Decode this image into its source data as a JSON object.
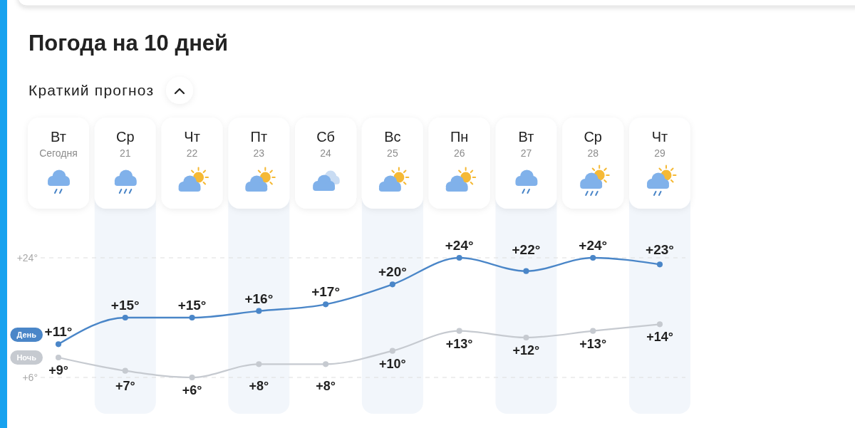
{
  "chart_data": {
    "type": "line",
    "title": "Погода на 10 дней",
    "subtitle": "Краткий прогноз",
    "categories": [
      "Вт Сегодня",
      "Ср 21",
      "Чт 22",
      "Пт 23",
      "Сб 24",
      "Вс 25",
      "Пн 26",
      "Вт 27",
      "Ср 28",
      "Чт 29"
    ],
    "series": [
      {
        "name": "День",
        "color": "#4a86c8",
        "values": [
          11,
          15,
          15,
          16,
          17,
          20,
          24,
          22,
          24,
          23
        ],
        "value_labels": [
          "+11°",
          "+15°",
          "+15°",
          "+16°",
          "+17°",
          "+20°",
          "+24°",
          "+22°",
          "+24°",
          "+23°"
        ]
      },
      {
        "name": "Ночь",
        "color": "#c6cad0",
        "values": [
          9,
          7,
          6,
          8,
          8,
          10,
          13,
          12,
          13,
          14
        ],
        "value_labels": [
          "+9°",
          "+7°",
          "+6°",
          "+8°",
          "+8°",
          "+10°",
          "+13°",
          "+12°",
          "+13°",
          "+14°"
        ]
      }
    ],
    "tick_labels": "x",
    "marker": "circle",
    "line_style": "solid",
    "ref_lines": [
      {
        "axis": "y",
        "value": 24,
        "label": "+24°",
        "color": "#dedede",
        "line_style": "dashed"
      },
      {
        "axis": "y",
        "value": 6,
        "label": "+6°",
        "color": "#dedede",
        "line_style": "dashed"
      }
    ],
    "bands": [
      {
        "axis": "x",
        "from": "Ср 21",
        "to": "Ср 21",
        "color": "#f2f6fb"
      },
      {
        "axis": "x",
        "from": "Пт 23",
        "to": "Пт 23",
        "color": "#f2f6fb"
      },
      {
        "axis": "x",
        "from": "Вс 25",
        "to": "Вс 25",
        "color": "#f2f6fb"
      },
      {
        "axis": "x",
        "from": "Вт 27",
        "to": "Вт 27",
        "color": "#f2f6fb"
      },
      {
        "axis": "x",
        "from": "Чт 29",
        "to": "Чт 29",
        "color": "#f2f6fb"
      }
    ]
  }
}
